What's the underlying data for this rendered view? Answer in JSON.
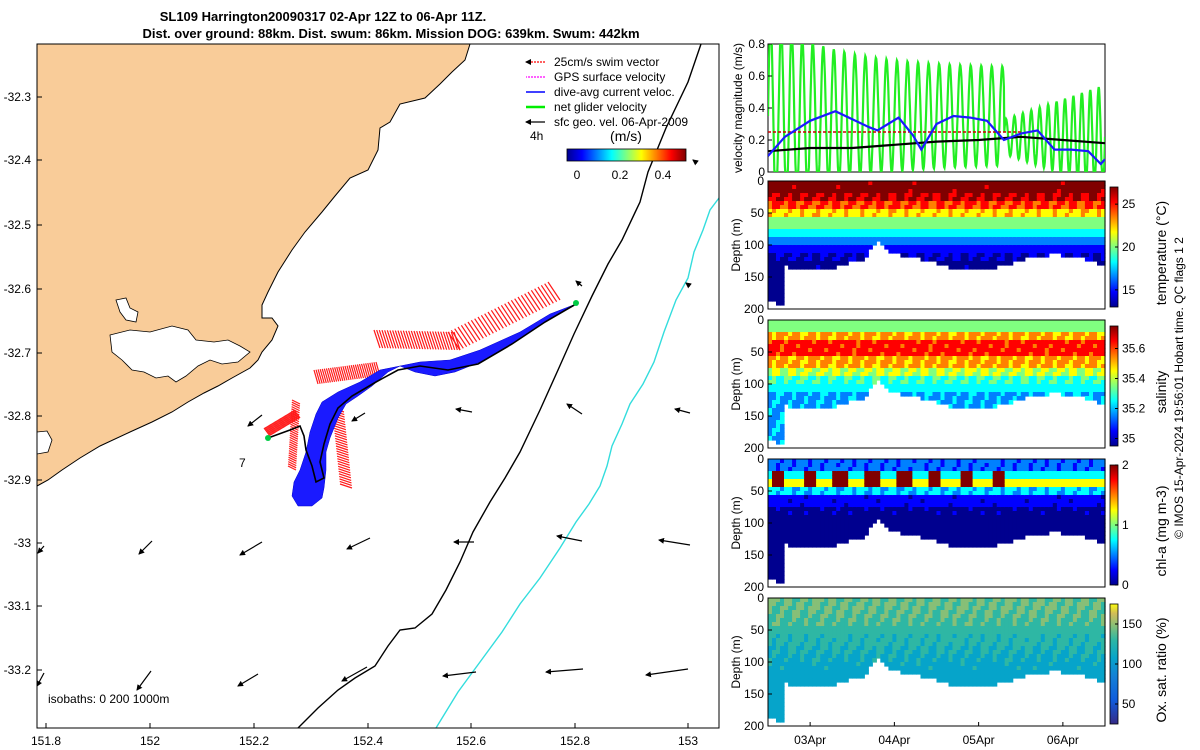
{
  "title": {
    "line1": "SL109 Harrington20090317 02-Apr 12Z to 06-Apr 11Z.",
    "line2": "Dist. over ground: 88km. Dist. swum: 86km. Mission DOG: 639km. Swum: 442km"
  },
  "legend": {
    "items": [
      {
        "label": "25cm/s swim vector",
        "color": "#ff0000"
      },
      {
        "label": "GPS surface velocity",
        "color": "#ff00ff"
      },
      {
        "label": "dive-avg current veloc.",
        "color": "#0000ff"
      },
      {
        "label": "net glider velocity",
        "color": "#00ee00"
      },
      {
        "label": "sfc geo. vel. 06-Apr-2009",
        "color": "#000000"
      }
    ],
    "time_label": "4h",
    "colorbar_title": "(m/s)",
    "colorbar_ticks": [
      "0",
      "0.2",
      "0.4"
    ]
  },
  "map": {
    "lon_ticks": [
      "151.8",
      "152",
      "152.2",
      "152.4",
      "152.6",
      "152.8",
      "153"
    ],
    "lat_ticks": [
      "-32.3",
      "-32.4",
      "-32.5",
      "-32.6",
      "-32.7",
      "-32.8",
      "-32.9",
      "-33",
      "-33.1",
      "-33.2"
    ],
    "marker_label": "7",
    "isobaths_label": "isobaths: 0   200  1000m",
    "land_color": "#f9cc99",
    "isobath_200_color": "#000000",
    "isobath_1000_color": "#33dddd"
  },
  "chart_data": [
    {
      "type": "line",
      "title": "velocity magnitude",
      "ylabel": "velocity magnitude (m/s)",
      "ylim": [
        0,
        0.8
      ],
      "yticks": [
        "0",
        "0.2",
        "0.4",
        "0.6",
        "0.8"
      ],
      "xlim_days": [
        0,
        4
      ],
      "series": [
        {
          "name": "dive-avg current veloc.",
          "color": "#1a1aff",
          "x": [
            0,
            0.2,
            0.5,
            0.8,
            1.0,
            1.2,
            1.3,
            1.55,
            1.72,
            1.82,
            2.0,
            2.2,
            2.4,
            2.6,
            2.8,
            3.0,
            3.2,
            3.4,
            3.6,
            3.8,
            3.95,
            4.0
          ],
          "y": [
            0.1,
            0.22,
            0.32,
            0.38,
            0.33,
            0.28,
            0.26,
            0.34,
            0.23,
            0.14,
            0.3,
            0.35,
            0.34,
            0.32,
            0.2,
            0.24,
            0.26,
            0.14,
            0.14,
            0.13,
            0.05,
            0.08
          ]
        },
        {
          "name": "sfc geo. vel.",
          "color": "#000000",
          "x": [
            0,
            0.5,
            1.0,
            1.5,
            2.0,
            2.5,
            3.0,
            3.5,
            4.0
          ],
          "y": [
            0.13,
            0.15,
            0.15,
            0.17,
            0.19,
            0.2,
            0.22,
            0.2,
            0.18
          ]
        },
        {
          "name": "25cm/s swim",
          "color": "#cc0000",
          "x": [
            0,
            3.0
          ],
          "y": [
            0.25,
            0.25
          ]
        }
      ]
    },
    {
      "type": "heatmap",
      "title": "temperature",
      "cbar_label": "temperature (°C)",
      "clim": [
        13,
        27
      ],
      "cbar_ticks": [
        "25",
        "20",
        "15"
      ],
      "cbar_tick_values": [
        25,
        20,
        15
      ],
      "ylabel": "Depth (m)",
      "yticks": [
        "0",
        "50",
        "100",
        "150",
        "200"
      ],
      "ylim": [
        0,
        200
      ],
      "profile_mean": [
        26,
        25.5,
        24,
        22,
        20,
        18.5,
        17,
        15.5,
        14.5,
        14,
        13.8
      ]
    },
    {
      "type": "heatmap",
      "title": "salinity",
      "cbar_label": "salinity",
      "clim": [
        34.95,
        35.75
      ],
      "cbar_ticks": [
        "35.6",
        "35.4",
        "35.2",
        "35"
      ],
      "cbar_tick_values": [
        35.6,
        35.4,
        35.2,
        35.0
      ],
      "ylabel": "Depth (m)",
      "yticks": [
        "0",
        "50",
        "100",
        "150",
        "200"
      ],
      "ylim": [
        0,
        200
      ],
      "profile_mean": [
        35.35,
        35.5,
        35.6,
        35.6,
        35.5,
        35.4,
        35.3,
        35.25,
        35.2,
        35.2,
        35.2
      ]
    },
    {
      "type": "heatmap",
      "title": "chl-a",
      "cbar_label": "chl-a (mg m-3)",
      "clim": [
        0,
        2
      ],
      "cbar_ticks": [
        "2",
        "1",
        "0"
      ],
      "cbar_tick_values": [
        2,
        1,
        0
      ],
      "ylabel": "Depth (m)",
      "yticks": [
        "0",
        "50",
        "100",
        "150",
        "200"
      ],
      "ylim": [
        0,
        200
      ],
      "profile_mean": [
        0.5,
        0.8,
        1.2,
        0.7,
        0.3,
        0.15,
        0.1,
        0.08,
        0.05,
        0.05,
        0.05
      ]
    },
    {
      "type": "heatmap",
      "title": "oxygen",
      "cbar_label": "Ox. sat. ratio (%)",
      "clim": [
        25,
        175
      ],
      "cbar_ticks": [
        "150",
        "100",
        "50"
      ],
      "cbar_tick_values": [
        150,
        100,
        50
      ],
      "ylabel": "Depth (m)",
      "yticks": [
        "0",
        "50",
        "100",
        "150",
        "200"
      ],
      "ylim": [
        0,
        200
      ],
      "profile_mean": [
        110,
        108,
        105,
        100,
        96,
        92,
        88,
        86,
        85,
        85,
        85
      ],
      "xticks": [
        "03Apr",
        "04Apr",
        "05Apr",
        "06Apr"
      ],
      "xtick_days": [
        0.5,
        1.5,
        2.5,
        3.5
      ]
    }
  ],
  "footer": "© IMOS 15-Apr-2024 19:56:01 Hobart time. QC flags 1  2"
}
